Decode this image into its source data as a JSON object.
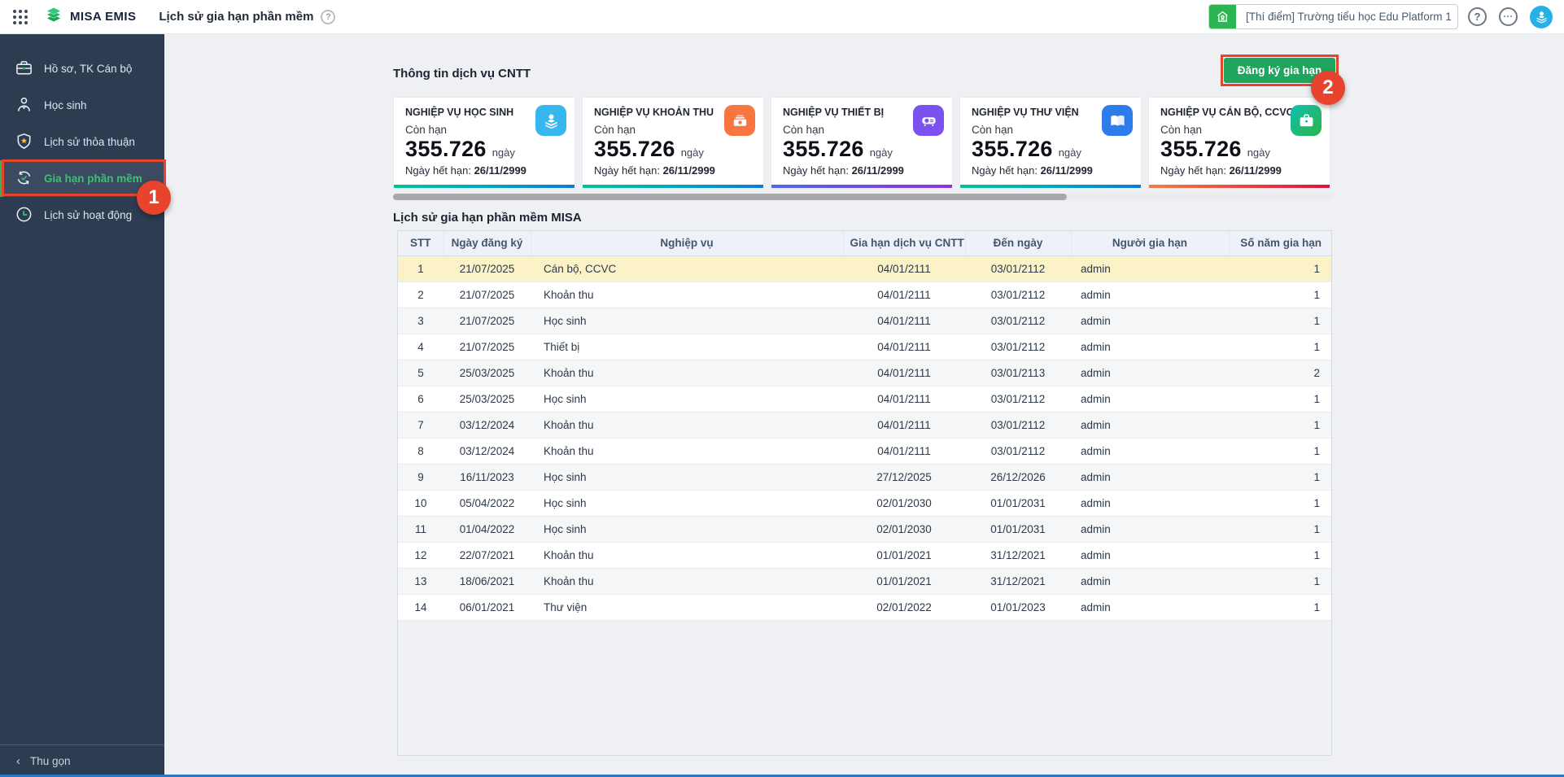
{
  "topbar": {
    "brand": "MISA EMIS",
    "page_title": "Lịch sử gia hạn phần mềm",
    "help_glyph": "?",
    "more_glyph": "...",
    "school_selector": "[Thí điểm] Trường tiểu học Edu Platform 1"
  },
  "sidebar": {
    "items": [
      {
        "label": "Hồ sơ, TK Cán bộ",
        "icon": "briefcase-icon",
        "active": false
      },
      {
        "label": "Học sinh",
        "icon": "student-icon",
        "active": false
      },
      {
        "label": "Lịch sử thỏa thuận",
        "icon": "shield-star-icon",
        "active": false
      },
      {
        "label": "Gia hạn phần mềm",
        "icon": "renew-icon",
        "active": true
      },
      {
        "label": "Lịch sử hoạt động",
        "icon": "clock-icon",
        "active": false
      }
    ],
    "collapse_label": "Thu gọn",
    "collapse_chevron": "‹"
  },
  "services": {
    "heading": "Thông tin dịch vụ CNTT",
    "register_button_label": "Đăng ký gia hạn",
    "cards": [
      {
        "title": "NGHIỆP VỤ HỌC SINH",
        "status": "Còn hạn",
        "days": "355.726",
        "days_unit": "ngày",
        "expiry_label": "Ngày hết hạn: ",
        "expiry_date": "26/11/2999",
        "icon": "student-stack-icon",
        "icon_bg": "#38b7ef",
        "strip": "linear-gradient(90deg,#00c295,#00a7c0,#1179d9)"
      },
      {
        "title": "NGHIỆP VỤ KHOẢN THU",
        "status": "Còn hạn",
        "days": "355.726",
        "days_unit": "ngày",
        "expiry_label": "Ngày hết hạn: ",
        "expiry_date": "26/11/2999",
        "icon": "money-icon",
        "icon_bg": "#f87540",
        "strip": "linear-gradient(90deg,#00c295,#00a7c0,#1179d9)"
      },
      {
        "title": "NGHIỆP VỤ THIẾT BỊ",
        "status": "Còn hạn",
        "days": "355.726",
        "days_unit": "ngày",
        "expiry_label": "Ngày hết hạn: ",
        "expiry_date": "26/11/2999",
        "icon": "projector-icon",
        "icon_bg": "#7b51f0",
        "strip": "linear-gradient(90deg,#4e68e8,#8a35dd)"
      },
      {
        "title": "NGHIỆP VỤ THƯ VIỆN",
        "status": "Còn hạn",
        "days": "355.726",
        "days_unit": "ngày",
        "expiry_label": "Ngày hết hạn: ",
        "expiry_date": "26/11/2999",
        "icon": "book-icon",
        "icon_bg": "#2e7ceb",
        "strip": "linear-gradient(90deg,#00c295,#00a7c0,#1179d9)"
      },
      {
        "title": "NGHIỆP VỤ CÁN BỘ, CCVC",
        "status": "Còn hạn",
        "days": "355.726",
        "days_unit": "ngày",
        "expiry_label": "Ngày hết hạn: ",
        "expiry_date": "26/11/2999",
        "icon": "briefcase-card-icon",
        "icon_bg": "linear-gradient(135deg,#0ec0ae,#2eb34c)",
        "strip": "linear-gradient(90deg,#f08045,#e0103e)"
      }
    ]
  },
  "history": {
    "heading": "Lịch sử gia hạn phần mềm MISA",
    "columns": [
      "STT",
      "Ngày đăng ký",
      "Nghiệp vụ",
      "Gia hạn dịch vụ CNTT từ r",
      "Đến ngày",
      "Người gia hạn",
      "Số năm gia hạn"
    ],
    "rows": [
      {
        "stt": "1",
        "registered": "21/07/2025",
        "service": "Cán bộ, CCVC",
        "from": "04/01/2111",
        "to": "03/01/2112",
        "by": "admin",
        "years": "1",
        "highlight": true
      },
      {
        "stt": "2",
        "registered": "21/07/2025",
        "service": "Khoản thu",
        "from": "04/01/2111",
        "to": "03/01/2112",
        "by": "admin",
        "years": "1"
      },
      {
        "stt": "3",
        "registered": "21/07/2025",
        "service": "Học sinh",
        "from": "04/01/2111",
        "to": "03/01/2112",
        "by": "admin",
        "years": "1"
      },
      {
        "stt": "4",
        "registered": "21/07/2025",
        "service": "Thiết bị",
        "from": "04/01/2111",
        "to": "03/01/2112",
        "by": "admin",
        "years": "1"
      },
      {
        "stt": "5",
        "registered": "25/03/2025",
        "service": "Khoản thu",
        "from": "04/01/2111",
        "to": "03/01/2113",
        "by": "admin",
        "years": "2"
      },
      {
        "stt": "6",
        "registered": "25/03/2025",
        "service": "Học sinh",
        "from": "04/01/2111",
        "to": "03/01/2112",
        "by": "admin",
        "years": "1"
      },
      {
        "stt": "7",
        "registered": "03/12/2024",
        "service": "Khoản thu",
        "from": "04/01/2111",
        "to": "03/01/2112",
        "by": "admin",
        "years": "1"
      },
      {
        "stt": "8",
        "registered": "03/12/2024",
        "service": "Khoản thu",
        "from": "04/01/2111",
        "to": "03/01/2112",
        "by": "admin",
        "years": "1"
      },
      {
        "stt": "9",
        "registered": "16/11/2023",
        "service": "Học sinh",
        "from": "27/12/2025",
        "to": "26/12/2026",
        "by": "admin",
        "years": "1"
      },
      {
        "stt": "10",
        "registered": "05/04/2022",
        "service": "Học sinh",
        "from": "02/01/2030",
        "to": "01/01/2031",
        "by": "admin",
        "years": "1"
      },
      {
        "stt": "11",
        "registered": "01/04/2022",
        "service": "Học sinh",
        "from": "02/01/2030",
        "to": "01/01/2031",
        "by": "admin",
        "years": "1"
      },
      {
        "stt": "12",
        "registered": "22/07/2021",
        "service": "Khoản thu",
        "from": "01/01/2021",
        "to": "31/12/2021",
        "by": "admin",
        "years": "1"
      },
      {
        "stt": "13",
        "registered": "18/06/2021",
        "service": "Khoản thu",
        "from": "01/01/2021",
        "to": "31/12/2021",
        "by": "admin",
        "years": "1"
      },
      {
        "stt": "14",
        "registered": "06/01/2021",
        "service": "Thư viện",
        "from": "02/01/2022",
        "to": "01/01/2023",
        "by": "admin",
        "years": "1"
      }
    ]
  },
  "annotations": {
    "step1": "1",
    "step2": "2"
  },
  "colors": {
    "annotation_red": "#e8432d",
    "brand_green": "#2eb553",
    "button_green": "#21a45d",
    "sidebar_bg": "#2d3c51",
    "sidebar_active_text": "#3ac173",
    "highlight_row": "#fcf2c8",
    "avatar_blue": "#27b0e8",
    "table_header_bg": "#eef2f8"
  }
}
